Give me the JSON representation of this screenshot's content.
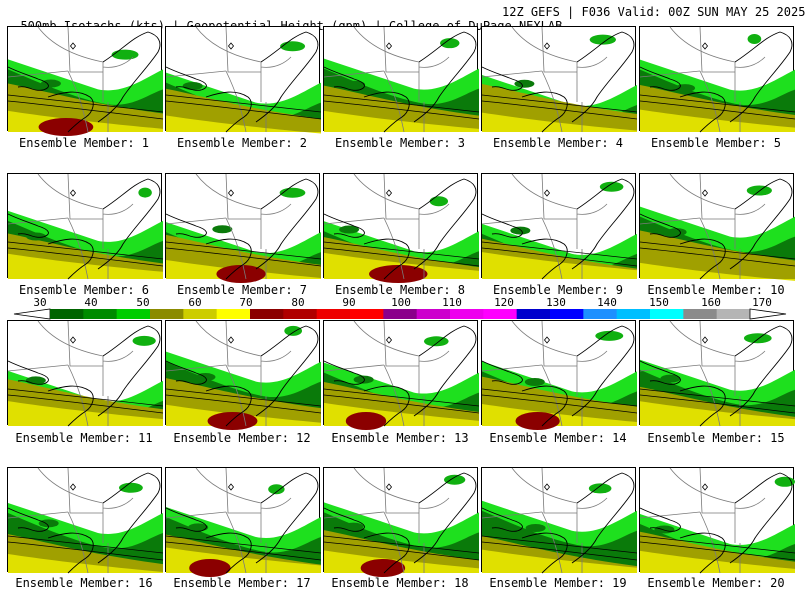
{
  "header": {
    "left": "500mb Isotachs (kts) | Geopotential Height (gpm) | College of DuPage NEXLAB",
    "right": "12Z GEFS | F036 Valid: 00Z SUN MAY 25 2025"
  },
  "caption_prefix": "Ensemble Member:",
  "members": [
    "1",
    "2",
    "3",
    "4",
    "5",
    "6",
    "7",
    "8",
    "9",
    "10",
    "11",
    "12",
    "13",
    "14",
    "15",
    "16",
    "17",
    "18",
    "19",
    "20"
  ],
  "colorbar": {
    "labels": [
      "30",
      "40",
      "50",
      "60",
      "70",
      "80",
      "90",
      "100",
      "110",
      "120",
      "130",
      "140",
      "150",
      "160",
      "170"
    ],
    "colors": [
      "#006400",
      "#008b00",
      "#00cd00",
      "#8b8b00",
      "#cdcd00",
      "#ffff00",
      "#8b0000",
      "#b00000",
      "#ee0000",
      "#ff0000",
      "#8b008b",
      "#cd00cd",
      "#ee00ee",
      "#ff00ff",
      "#0000cd",
      "#0000ff",
      "#1e90ff",
      "#00b2ee",
      "#00bfff",
      "#00ffff",
      "#8b8b8b",
      "#b5b5b5"
    ],
    "colors_main": [
      "#006400",
      "#008b00",
      "#00cd00",
      "#8b8b00",
      "#cdcd00",
      "#ffff00",
      "#8b0000",
      "#b00000",
      "#ee0000",
      "#ff0000",
      "#8b008b",
      "#cd00cd",
      "#ee00ee",
      "#ff00ff",
      "#0000cd",
      "#0000ff",
      "#1e90ff",
      "#00bfff",
      "#00ffff",
      "#8b8b8b",
      "#b5b5b5"
    ]
  },
  "fills": {
    "dark_green": "#0a7a0a",
    "mid_green": "#10b010",
    "bright_green": "#1ee01e",
    "olive": "#a0a000",
    "yellow": "#e0e000",
    "dark_red": "#8b0000"
  }
}
